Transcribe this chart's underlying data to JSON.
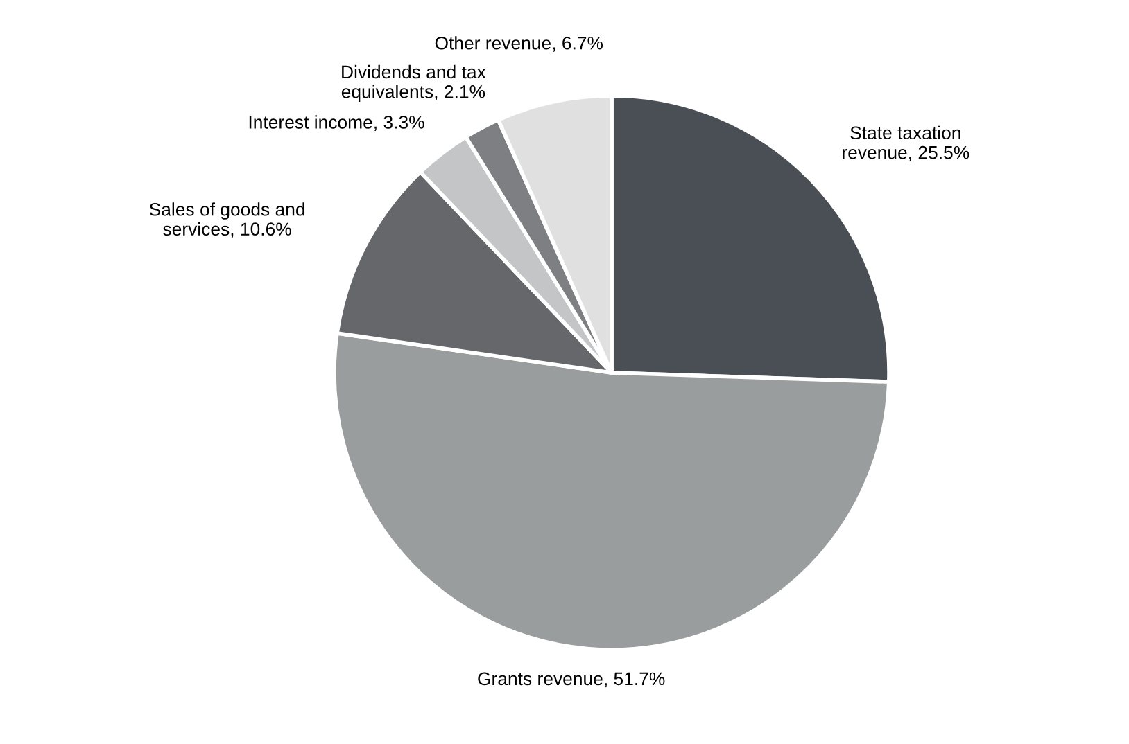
{
  "chart_data": {
    "type": "pie",
    "categories": [
      "State taxation revenue",
      "Grants revenue",
      "Sales of goods and services",
      "Interest income",
      "Dividends and tax equivalents",
      "Other revenue"
    ],
    "values": [
      25.5,
      51.7,
      10.6,
      3.3,
      2.1,
      6.7
    ],
    "value_labels": [
      "25.5%",
      "51.7%",
      "10.6%",
      "3.3%",
      "2.1%",
      "6.7%"
    ],
    "colors": [
      "#4a4e55",
      "#9a9d9e",
      "#66676b",
      "#c4c5c7",
      "#7d7f82",
      "#e0e0e0"
    ]
  }
}
